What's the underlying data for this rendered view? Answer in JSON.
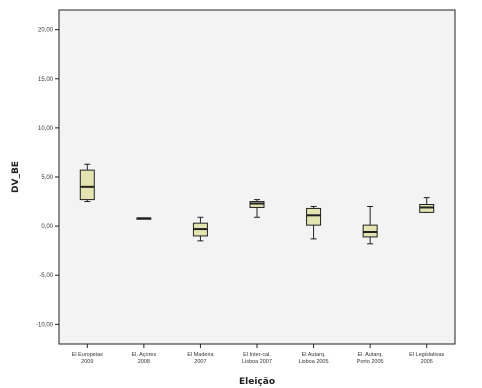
{
  "chart_data": {
    "type": "boxplot",
    "xlabel": "Eleição",
    "ylabel": "DV_BE",
    "ylim": [
      -12,
      22
    ],
    "y_ticks": [
      {
        "value": 20,
        "label": "20,00"
      },
      {
        "value": 15,
        "label": "15,00"
      },
      {
        "value": 10,
        "label": "10,00"
      },
      {
        "value": 5,
        "label": "5,00"
      },
      {
        "value": 0,
        "label": "0,00"
      },
      {
        "value": -5,
        "label": "-5,00"
      },
      {
        "value": -10,
        "label": "-10,00"
      }
    ],
    "categories": [
      [
        "El Europeias",
        "2009"
      ],
      [
        "El. Açores",
        "2008"
      ],
      [
        "El Madeira",
        "2007"
      ],
      [
        "El Inter-cal.",
        "Lisboa 2007"
      ],
      [
        "El Autarq.",
        "Lisboa 2005"
      ],
      [
        "El. Autarq.",
        "Porto 2005"
      ],
      [
        "El Legislativas",
        "2005"
      ]
    ],
    "boxes": [
      {
        "min": 2.5,
        "q1": 2.7,
        "median": 4.0,
        "q3": 5.7,
        "max": 6.3
      },
      {
        "min": 0.8,
        "q1": 0.8,
        "median": 0.8,
        "q3": 0.8,
        "max": 0.8
      },
      {
        "min": -1.5,
        "q1": -1.0,
        "median": -0.3,
        "q3": 0.3,
        "max": 0.9
      },
      {
        "min": 0.9,
        "q1": 1.9,
        "median": 2.3,
        "q3": 2.5,
        "max": 2.7
      },
      {
        "min": -1.3,
        "q1": 0.1,
        "median": 1.1,
        "q3": 1.8,
        "max": 2.0
      },
      {
        "min": -1.8,
        "q1": -1.1,
        "median": -0.6,
        "q3": 0.1,
        "max": 2.0
      },
      {
        "min": 1.4,
        "q1": 1.4,
        "median": 1.9,
        "q3": 2.2,
        "max": 2.9
      }
    ],
    "grid": false,
    "box_fill": "#e4e4b0",
    "plot_bg": "#f3f3f3",
    "stroke": "#222222"
  }
}
